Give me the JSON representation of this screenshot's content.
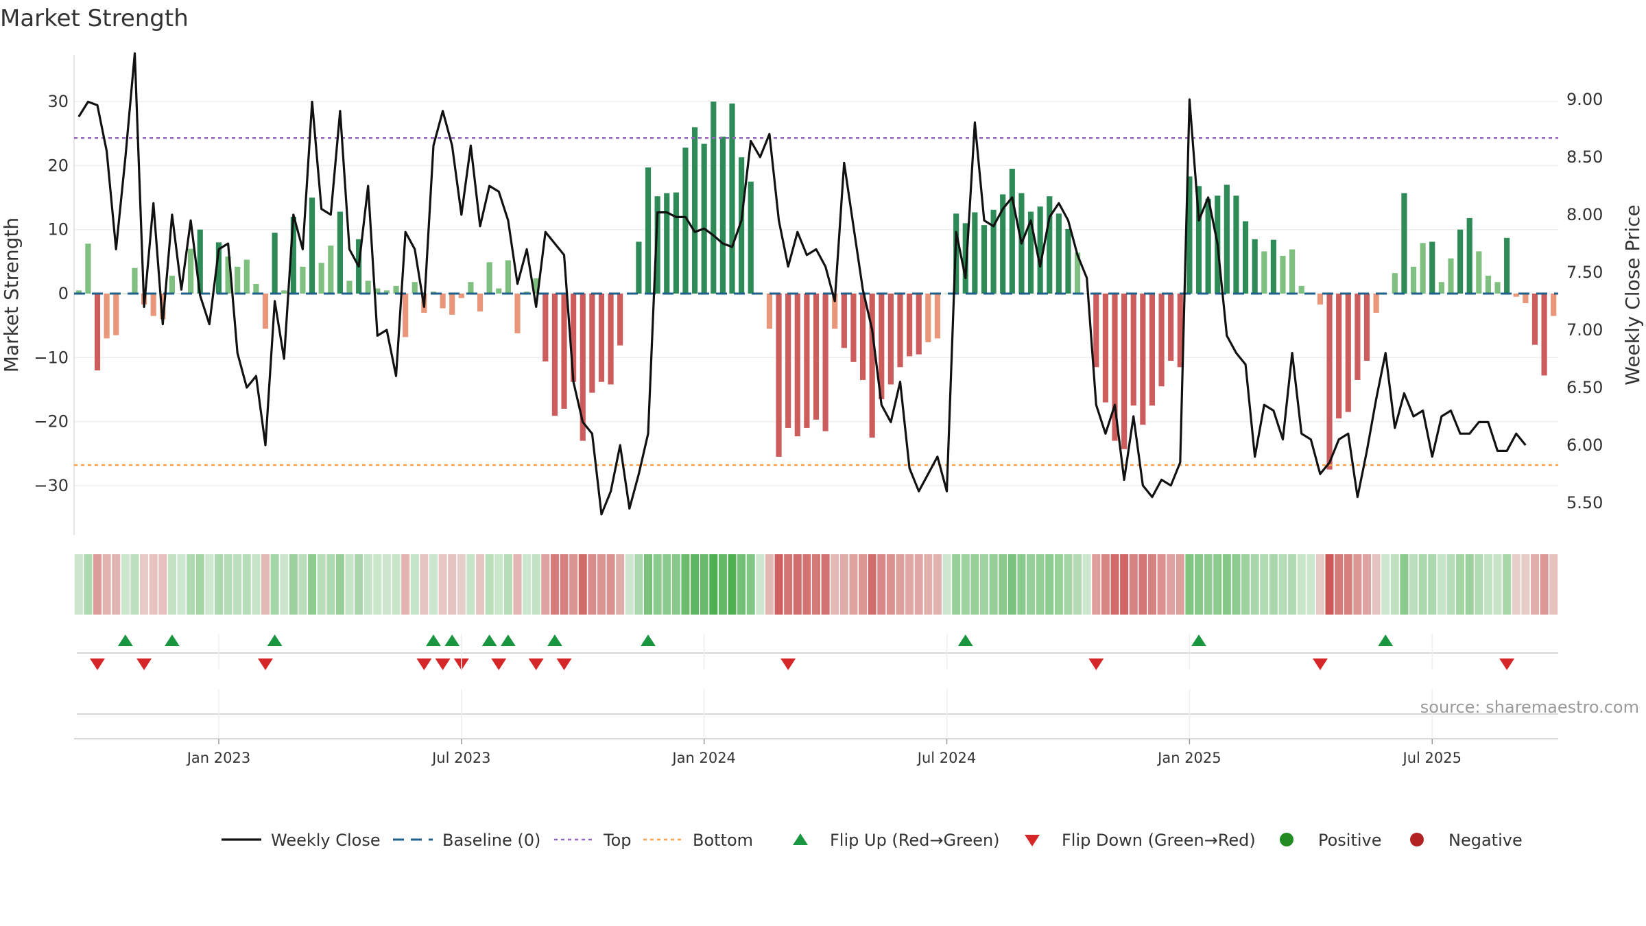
{
  "chart_data": {
    "type": "bar+line",
    "title": "Market Strength",
    "ylabel_left": "Market Strength",
    "ylabel_right": "Weekly Close Price",
    "ylim_left": [
      -37.5,
      37
    ],
    "ylim_right": [
      5.27,
      9.45
    ],
    "yticks_left": [
      30,
      20,
      10,
      0,
      -10,
      -20,
      -30
    ],
    "ytick_labels_left": [
      "30",
      "20",
      "10",
      "0",
      "−10",
      "−20",
      "−30"
    ],
    "yticks_right": [
      9.0,
      8.5,
      8.0,
      7.5,
      7.0,
      6.5,
      6.0,
      5.5
    ],
    "ytick_labels_right": [
      "9.00",
      "8.50",
      "8.00",
      "7.50",
      "7.00",
      "6.50",
      "6.00",
      "5.50"
    ],
    "date_ticks": [
      {
        "label": "Jan 2023",
        "week": 15
      },
      {
        "label": "Jul 2023",
        "week": 41
      },
      {
        "label": "Jan 2024",
        "week": 67
      },
      {
        "label": "Jul 2024",
        "week": 93
      },
      {
        "label": "Jan 2025",
        "week": 119
      },
      {
        "label": "Jul 2025",
        "week": 145
      }
    ],
    "top_threshold": 24.3,
    "bottom_threshold": -26.8,
    "baseline": 0,
    "strength": [
      0.5,
      7.8,
      -12,
      -7,
      -6.5,
      0,
      4,
      -1.7,
      -3.5,
      -4,
      2.8,
      0,
      7,
      10,
      0,
      8,
      5.8,
      4.2,
      5.3,
      1.5,
      -5.5,
      9.5,
      0.5,
      12,
      4.2,
      15,
      4.8,
      7.5,
      12.8,
      2,
      8.5,
      2,
      0.8,
      0.5,
      1.2,
      -6.8,
      1.8,
      -3,
      0.3,
      -2.3,
      -3.3,
      -0.7,
      1.8,
      -2.8,
      4.9,
      0.8,
      5.2,
      -6.2,
      0.3,
      2.4,
      -10.6,
      -19.1,
      -18,
      -13.8,
      -23,
      -15.5,
      -13.8,
      -14.2,
      -8.1,
      0,
      8.1,
      19.7,
      15.2,
      15.7,
      15.8,
      22.8,
      26,
      23.4,
      30,
      24.5,
      29.7,
      21.3,
      17.5,
      0,
      -5.5,
      -25.5,
      -21,
      -22.3,
      -21,
      -19.7,
      -21.5,
      -5.5,
      -8.5,
      -10.7,
      -13.5,
      -22.5,
      -16.5,
      -14.2,
      -11.5,
      -9.8,
      -9.5,
      -7.6,
      -7,
      0,
      12.5,
      11,
      12.7,
      10.7,
      13.1,
      15.5,
      19.5,
      15.7,
      12.8,
      13.6,
      15.2,
      12.5,
      10.1,
      6.4,
      0,
      -11.5,
      -17,
      -23,
      -24.3,
      -17.5,
      -20.5,
      -17.5,
      -14.5,
      -10.5,
      -11.5,
      18.3,
      16.8,
      14.8,
      15.3,
      17,
      15.3,
      11.3,
      8.5,
      6.6,
      8.4,
      5.9,
      6.9,
      1.2,
      0,
      -1.7,
      -27.5,
      -19.5,
      -18.5,
      -13.5,
      -10.5,
      -3,
      0,
      3.2,
      15.7,
      4.2,
      7.9,
      8.1,
      1.8,
      5.5,
      10,
      11.8,
      6.6,
      2.8,
      1.8,
      8.7,
      -0.5,
      -1.5,
      -8,
      -12.8,
      -3.5
    ],
    "close": [
      8.85,
      8.98,
      8.95,
      8.55,
      7.7,
      8.5,
      9.4,
      7.2,
      8.1,
      7.05,
      8.0,
      7.35,
      7.95,
      7.3,
      7.05,
      7.7,
      7.75,
      6.8,
      6.5,
      6.6,
      6.0,
      7.25,
      6.75,
      8.0,
      7.7,
      8.98,
      8.05,
      8.0,
      8.9,
      7.7,
      7.55,
      8.25,
      6.95,
      7.0,
      6.6,
      7.85,
      7.7,
      7.2,
      8.6,
      8.9,
      8.6,
      8.0,
      8.6,
      7.9,
      8.25,
      8.2,
      7.95,
      7.4,
      7.7,
      7.2,
      7.85,
      7.75,
      7.65,
      6.55,
      6.2,
      6.1,
      5.4,
      5.6,
      6.0,
      5.45,
      5.75,
      6.1,
      8.02,
      8.02,
      7.98,
      7.98,
      7.85,
      7.88,
      7.82,
      7.75,
      7.72,
      7.95,
      8.64,
      8.5,
      8.7,
      7.95,
      7.55,
      7.85,
      7.65,
      7.7,
      7.55,
      7.25,
      8.45,
      7.9,
      7.35,
      7.0,
      6.35,
      6.2,
      6.55,
      5.8,
      5.6,
      5.75,
      5.9,
      5.6,
      7.85,
      7.45,
      8.8,
      7.95,
      7.9,
      8.05,
      8.15,
      7.75,
      7.95,
      7.55,
      7.98,
      8.1,
      7.95,
      7.65,
      7.45,
      6.35,
      6.1,
      6.35,
      5.7,
      6.25,
      5.65,
      5.55,
      5.7,
      5.65,
      5.85,
      9.0,
      7.95,
      8.15,
      7.75,
      6.95,
      6.8,
      6.7,
      5.9,
      6.35,
      6.3,
      6.05,
      6.8,
      6.1,
      6.05,
      5.75,
      5.85,
      6.05,
      6.1,
      5.55,
      5.95,
      6.4,
      6.8,
      6.15,
      6.45,
      6.25,
      6.3,
      5.9,
      6.25,
      6.3,
      6.1,
      6.1,
      6.2,
      6.2,
      5.95,
      5.95,
      6.1,
      6.0
    ],
    "flip_up_weeks": [
      5,
      10,
      21,
      38,
      40,
      44,
      46,
      51,
      61,
      95,
      120,
      140
    ],
    "flip_down_weeks": [
      2,
      7,
      20,
      37,
      39,
      41,
      45,
      49,
      52,
      76,
      109,
      133,
      153
    ],
    "legend": [
      "Weekly Close",
      "Baseline (0)",
      "Top",
      "Bottom",
      "Flip Up (Red→Green)",
      "Flip Down (Green→Red)",
      "Positive",
      "Negative"
    ],
    "legend_position": "bottom-center",
    "colors": {
      "pos_strong": "#2e8b57",
      "pos_light": "#7fbf7f",
      "neg_strong": "#cd5c5c",
      "neg_light": "#e9967a",
      "line": "#111111",
      "baseline": "#1f5f8b",
      "top": "#9467bd",
      "bottom": "#ff9f4a",
      "flip_up": "#1a9641",
      "flip_down": "#d62728",
      "positive_dot": "#228b22",
      "negative_dot": "#b22222",
      "grid": "#eeeeee"
    }
  },
  "source": "source: sharemaestro.com"
}
